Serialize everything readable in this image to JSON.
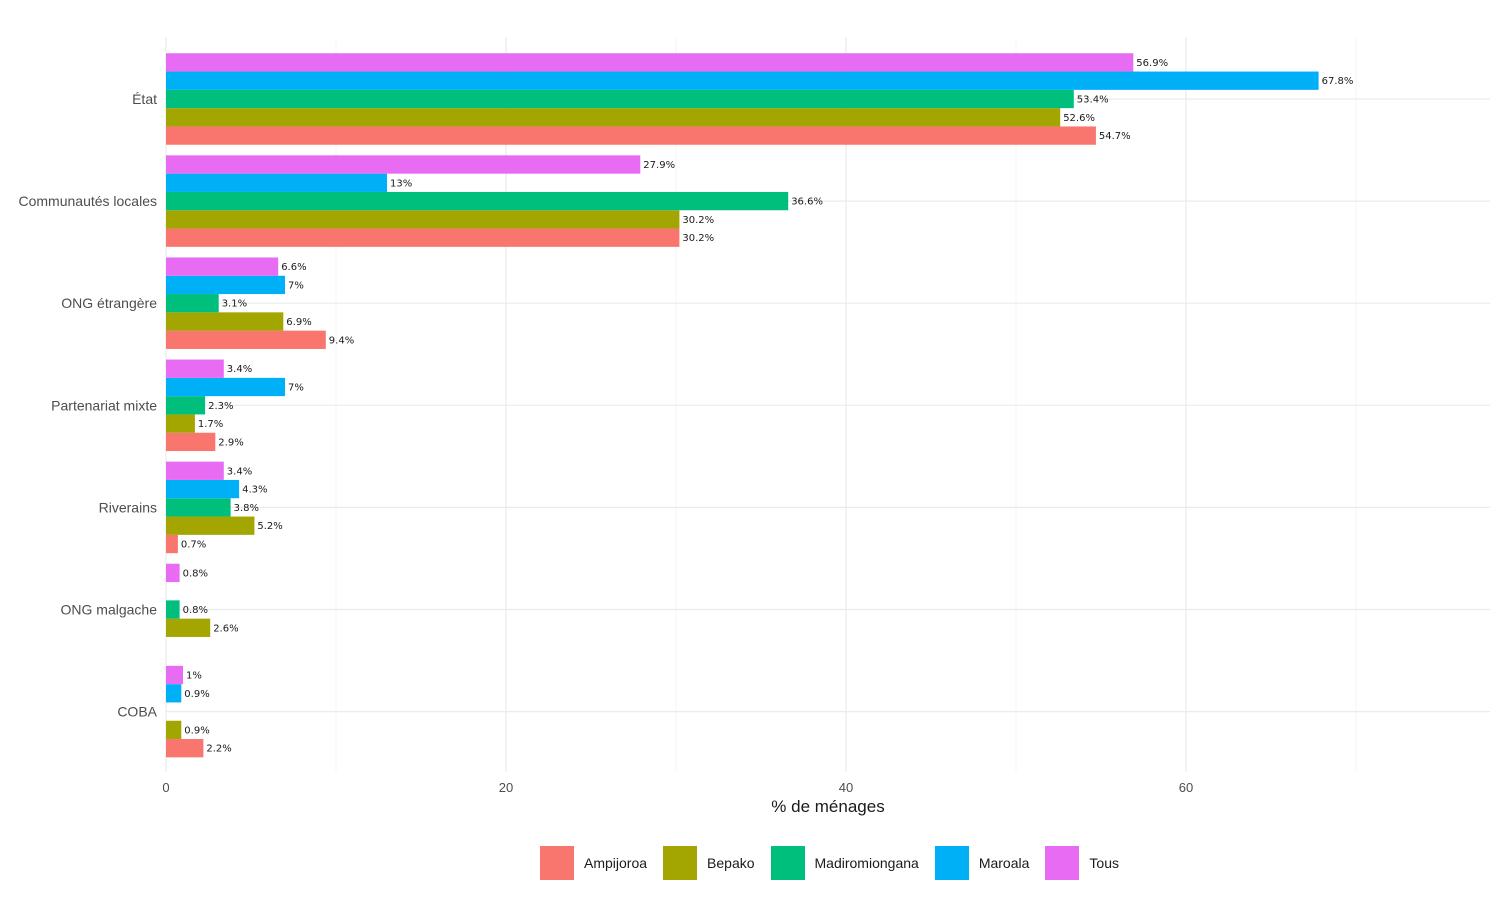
{
  "chart_data": {
    "type": "bar",
    "orientation": "horizontal",
    "title": "",
    "xlabel": "% de ménages",
    "ylabel": "",
    "xlim": [
      0,
      77
    ],
    "x_ticks": [
      0,
      20,
      40,
      60
    ],
    "x_tick_labels": [
      "0",
      "20",
      "40",
      "60"
    ],
    "grid": true,
    "legend_position": "bottom",
    "categories": [
      "État",
      "Communautés locales",
      "ONG étrangère",
      "Partenariat mixte",
      "Riverains",
      "ONG malgache",
      "COBA"
    ],
    "series": [
      {
        "name": "Ampijoroa",
        "color": "#F8766D",
        "values": [
          54.7,
          30.2,
          9.4,
          2.9,
          0.7,
          null,
          2.2
        ],
        "labels": [
          "54.7%",
          "30.2%",
          "9.4%",
          "2.9%",
          "0.7%",
          null,
          "2.2%"
        ]
      },
      {
        "name": "Bepako",
        "color": "#A3A500",
        "values": [
          52.6,
          30.2,
          6.9,
          1.7,
          5.2,
          2.6,
          0.9
        ],
        "labels": [
          "52.6%",
          "30.2%",
          "6.9%",
          "1.7%",
          "5.2%",
          "2.6%",
          "0.9%"
        ]
      },
      {
        "name": "Madiromiongana",
        "color": "#00BF7D",
        "values": [
          53.4,
          36.6,
          3.1,
          2.3,
          3.8,
          0.8,
          null
        ],
        "labels": [
          "53.4%",
          "36.6%",
          "3.1%",
          "2.3%",
          "3.8%",
          "0.8%",
          null
        ]
      },
      {
        "name": "Maroala",
        "color": "#00B0F6",
        "values": [
          67.8,
          13,
          7,
          7,
          4.3,
          null,
          0.9
        ],
        "labels": [
          "67.8%",
          "13%",
          "7%",
          "7%",
          "4.3%",
          null,
          "0.9%"
        ]
      },
      {
        "name": "Tous",
        "color": "#E76BF3",
        "values": [
          56.9,
          27.9,
          6.6,
          3.4,
          3.4,
          0.8,
          1
        ],
        "labels": [
          "56.9%",
          "27.9%",
          "6.6%",
          "3.4%",
          "3.4%",
          "0.8%",
          "1%"
        ]
      }
    ]
  }
}
